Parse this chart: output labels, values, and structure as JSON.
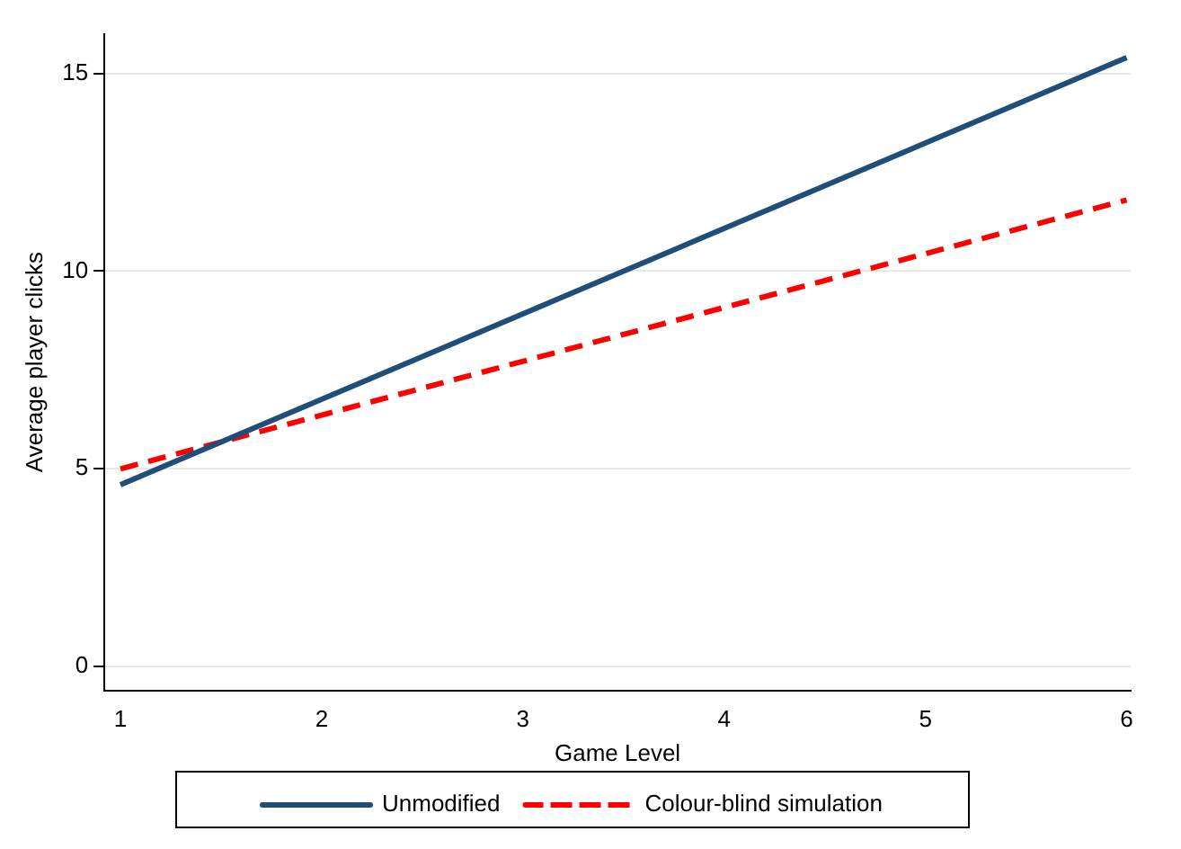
{
  "chart_data": {
    "type": "line",
    "xlabel": "Game Level",
    "ylabel": "Average player clicks",
    "x": [
      1,
      6
    ],
    "series": [
      {
        "name": "Unmodified",
        "color": "#1f4e79",
        "values": [
          4.6,
          15.4
        ],
        "line_style": "solid"
      },
      {
        "name": "Colour-blind simulation",
        "color": "#ff0000",
        "values": [
          5.0,
          11.8
        ],
        "line_style": "dashed"
      }
    ],
    "xlim": [
      0.92,
      6.02
    ],
    "xticks": [
      1,
      2,
      3,
      4,
      5,
      6
    ],
    "ylim": [
      -0.6,
      16
    ],
    "yticks": [
      0,
      5,
      10,
      15
    ],
    "grid": "y",
    "legend": "bottom",
    "marker": "none"
  }
}
